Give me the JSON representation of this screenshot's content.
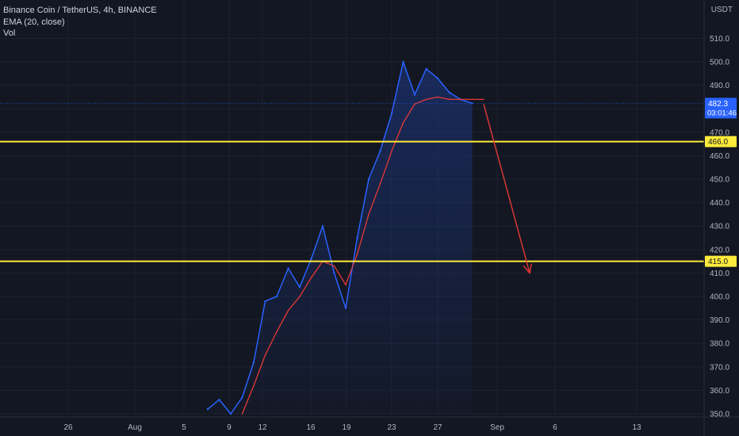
{
  "legend": {
    "symbol": "Binance Coin / TetherUS, 4h, BINANCE",
    "ema": "EMA (20, close)",
    "volume": "Vol"
  },
  "price_axis": {
    "unit": "USDT",
    "current_price": "482.3",
    "countdown": "03:01:46"
  },
  "colors": {
    "background": "#131722",
    "price_line": "#2962ff",
    "area_fill": "#1e3a8a",
    "ema_line": "#e53935",
    "level_line": "#ffeb3b",
    "arrow": "#e53935",
    "current_price_label": "#2962ff"
  },
  "chart_data": {
    "type": "line",
    "title": "Binance Coin / TetherUS, 4h, BINANCE",
    "x_ticks": [
      "26",
      "Aug",
      "5",
      "9",
      "12",
      "16",
      "19",
      "23",
      "27",
      "Sep",
      "6",
      "13"
    ],
    "y_ticks": [
      "350.0",
      "360.0",
      "370.0",
      "380.0",
      "390.0",
      "400.0",
      "410.0",
      "420.0",
      "430.0",
      "440.0",
      "450.0",
      "460.0",
      "470.0",
      "480.0",
      "490.0",
      "500.0",
      "510.0"
    ],
    "ylim": [
      350,
      515
    ],
    "grid": true,
    "price_series": {
      "name": "Binance Coin / TetherUS",
      "x": [
        "Aug 7",
        "Aug 8",
        "Aug 9",
        "Aug 10",
        "Aug 11",
        "Aug 12",
        "Aug 13",
        "Aug 14",
        "Aug 15",
        "Aug 16",
        "Aug 17",
        "Aug 18",
        "Aug 19",
        "Aug 20",
        "Aug 21",
        "Aug 22",
        "Aug 23",
        "Aug 24",
        "Aug 25",
        "Aug 26",
        "Aug 27",
        "Aug 28",
        "Aug 29",
        "Aug 30"
      ],
      "values": [
        352,
        356,
        350,
        357,
        372,
        398,
        400,
        412,
        404,
        416,
        430,
        410,
        395,
        425,
        450,
        462,
        478,
        500,
        486,
        497,
        493,
        487,
        484,
        482.3
      ]
    },
    "ema_series": {
      "name": "EMA (20, close)",
      "x": [
        "Aug 10",
        "Aug 11",
        "Aug 12",
        "Aug 13",
        "Aug 14",
        "Aug 15",
        "Aug 16",
        "Aug 17",
        "Aug 18",
        "Aug 19",
        "Aug 20",
        "Aug 21",
        "Aug 22",
        "Aug 23",
        "Aug 24",
        "Aug 25",
        "Aug 26",
        "Aug 27",
        "Aug 28",
        "Aug 29",
        "Aug 30",
        "Aug 31"
      ],
      "values": [
        350,
        362,
        375,
        385,
        394,
        400,
        408,
        415,
        413,
        405,
        418,
        435,
        448,
        462,
        474,
        482,
        484,
        485,
        484,
        484,
        484,
        484
      ]
    },
    "horizontal_levels": [
      {
        "label": "466.0",
        "value": 466.0
      },
      {
        "label": "415.0",
        "value": 415.0
      }
    ],
    "forecast_arrow": {
      "from": {
        "x": "Aug 31",
        "y": 482
      },
      "to": {
        "x": "Sep 4",
        "y": 410
      }
    }
  }
}
